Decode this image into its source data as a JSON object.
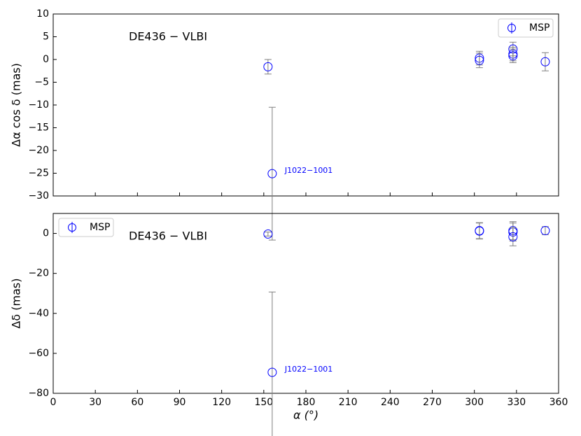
{
  "chart_data": [
    {
      "type": "scatter",
      "text_label": "DE436 − VLBI",
      "ylabel": "Δα cos δ (mas)",
      "annotation": "J1022−1001",
      "x": [
        153.0,
        156.0,
        303.6,
        303.6,
        327.5,
        327.5,
        327.5,
        350.5
      ],
      "series": [
        {
          "name": "MSP",
          "color": "#0000ff",
          "error_color": "#808080",
          "values": [
            -1.6,
            -25.1,
            0.3,
            -0.2,
            2.3,
            1.2,
            0.8,
            -0.5
          ],
          "errors": [
            1.6,
            14.6,
            1.5,
            1.6,
            1.5,
            1.5,
            1.5,
            2.0
          ]
        }
      ],
      "xlim": [
        0,
        360
      ],
      "xticks": [
        0,
        30,
        60,
        90,
        120,
        150,
        180,
        210,
        240,
        270,
        300,
        330,
        360
      ],
      "ylim": [
        -30,
        10
      ],
      "yticks": [
        {
          "value": -30,
          "label": "−30"
        },
        {
          "value": -25,
          "label": "−25"
        },
        {
          "value": -20,
          "label": "−20"
        },
        {
          "value": -15,
          "label": "−15"
        },
        {
          "value": -10,
          "label": "−10"
        },
        {
          "value": -5,
          "label": "−5"
        },
        0,
        5,
        10
      ],
      "legend": "upper right"
    },
    {
      "type": "scatter",
      "text_label": "DE436 − VLBI",
      "ylabel": "Δδ (mas)",
      "xlabel": "α (°)",
      "annotation": "J1022−1001",
      "x": [
        153.0,
        156.0,
        303.6,
        303.6,
        327.5,
        327.5,
        327.5,
        350.5
      ],
      "series": [
        {
          "name": "MSP",
          "color": "#0000ff",
          "error_color": "#808080",
          "values": [
            -0.3,
            -69.5,
            1.4,
            1.2,
            1.4,
            0.7,
            -1.7,
            1.4
          ],
          "errors": [
            1.0,
            40.2,
            4.0,
            4.0,
            4.5,
            4.5,
            4.5,
            2.0
          ]
        }
      ],
      "xlim": [
        0,
        360
      ],
      "xticks": [
        0,
        30,
        60,
        90,
        120,
        150,
        180,
        210,
        240,
        270,
        300,
        330,
        360
      ],
      "ylim": [
        -80,
        10
      ],
      "yticks": [
        {
          "value": -80,
          "label": "−80"
        },
        {
          "value": -60,
          "label": "−60"
        },
        {
          "value": -40,
          "label": "−40"
        },
        {
          "value": -20,
          "label": "−20"
        },
        0
      ],
      "legend": "upper left"
    }
  ]
}
